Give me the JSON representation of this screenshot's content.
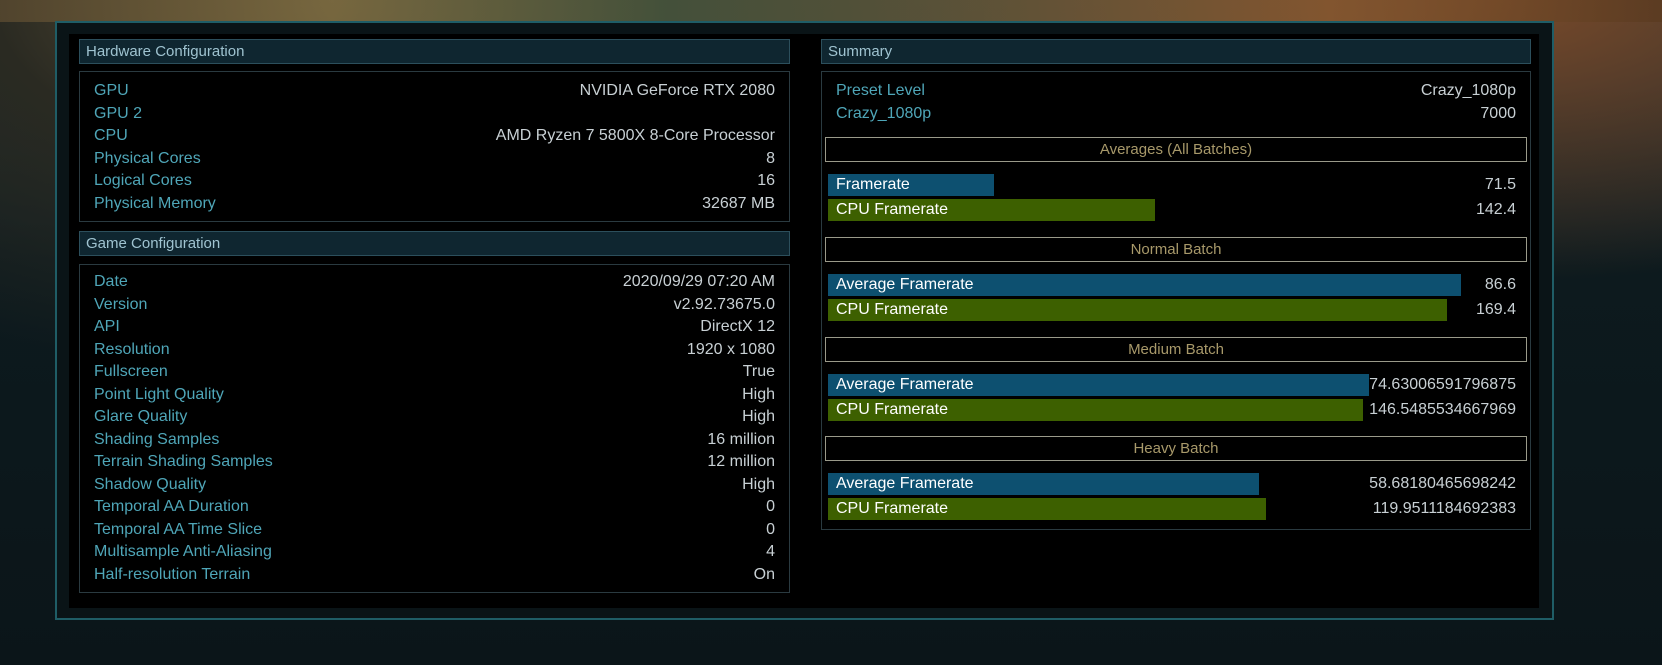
{
  "hardware": {
    "title": "Hardware Configuration",
    "rows": [
      {
        "label": "GPU",
        "value": "NVIDIA GeForce RTX 2080"
      },
      {
        "label": "GPU 2",
        "value": ""
      },
      {
        "label": "CPU",
        "value": "AMD Ryzen 7 5800X 8-Core Processor"
      },
      {
        "label": "Physical Cores",
        "value": "8"
      },
      {
        "label": "Logical Cores",
        "value": "16"
      },
      {
        "label": "Physical Memory",
        "value": "32687 MB"
      }
    ]
  },
  "game": {
    "title": "Game Configuration",
    "rows": [
      {
        "label": "Date",
        "value": "2020/09/29 07:20 AM"
      },
      {
        "label": "Version",
        "value": "v2.92.73675.0"
      },
      {
        "label": "API",
        "value": "DirectX 12"
      },
      {
        "label": "Resolution",
        "value": "1920 x 1080"
      },
      {
        "label": "Fullscreen",
        "value": "True"
      },
      {
        "label": "Point Light Quality",
        "value": "High"
      },
      {
        "label": "Glare Quality",
        "value": "High"
      },
      {
        "label": "Shading Samples",
        "value": "16 million"
      },
      {
        "label": "Terrain Shading Samples",
        "value": "12 million"
      },
      {
        "label": "Shadow Quality",
        "value": "High"
      },
      {
        "label": "Temporal AA Duration",
        "value": "0"
      },
      {
        "label": "Temporal AA Time Slice",
        "value": "0"
      },
      {
        "label": "Multisample Anti-Aliasing",
        "value": "4"
      },
      {
        "label": "Half-resolution Terrain",
        "value": "On"
      }
    ]
  },
  "summary": {
    "title": "Summary",
    "rows": [
      {
        "label": "Preset Level",
        "value": "Crazy_1080p"
      },
      {
        "label": "Crazy_1080p",
        "value": "7000"
      }
    ],
    "sections": [
      {
        "title": "Averages (All Batches)",
        "bars": [
          {
            "label": "Framerate",
            "value": "71.5",
            "fill": 0.242,
            "kind": "gpu"
          },
          {
            "label": "CPU Framerate",
            "value": "142.4",
            "fill": 0.475,
            "kind": "cpu"
          }
        ]
      },
      {
        "title": "Normal Batch",
        "bars": [
          {
            "label": "Average Framerate",
            "value": "86.6",
            "fill": 0.92,
            "kind": "gpu"
          },
          {
            "label": "CPU Framerate",
            "value": "169.4",
            "fill": 0.9,
            "kind": "cpu"
          }
        ]
      },
      {
        "title": "Medium Batch",
        "bars": [
          {
            "label": "Average Framerate",
            "value": "74.63006591796875",
            "fill": 0.787,
            "kind": "gpu"
          },
          {
            "label": "CPU Framerate",
            "value": "146.5485534667969",
            "fill": 0.777,
            "kind": "cpu"
          }
        ]
      },
      {
        "title": "Heavy Batch",
        "bars": [
          {
            "label": "Average Framerate",
            "value": "58.68180465698242",
            "fill": 0.626,
            "kind": "gpu"
          },
          {
            "label": "CPU Framerate",
            "value": "119.9511184692383",
            "fill": 0.636,
            "kind": "cpu"
          }
        ]
      }
    ]
  },
  "colors": {
    "gpu_bar": "#0d5070",
    "cpu_bar": "#3d6000",
    "label": "#4fa6b8",
    "value": "#c8d0d4",
    "section_title": "#a8996a"
  }
}
